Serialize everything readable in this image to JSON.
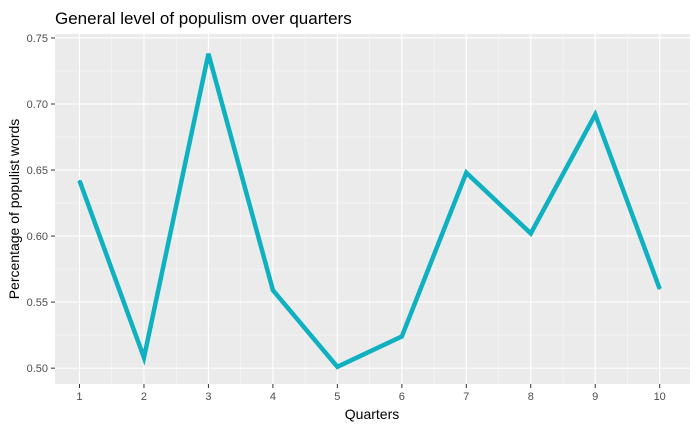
{
  "chart_data": {
    "type": "line",
    "title": "General level of populism over quarters",
    "xlabel": "Quarters",
    "ylabel": "Percentage of populist words",
    "x": [
      1,
      2,
      3,
      4,
      5,
      6,
      7,
      8,
      9,
      10
    ],
    "xticks": [
      "1",
      "2",
      "3",
      "4",
      "5",
      "6",
      "7",
      "8",
      "9",
      "10"
    ],
    "xlim": [
      0.62,
      10.47
    ],
    "yticks": [
      "0.50",
      "0.55",
      "0.60",
      "0.65",
      "0.70",
      "0.75"
    ],
    "ytick_values": [
      0.5,
      0.55,
      0.6,
      0.65,
      0.7,
      0.75
    ],
    "ylim": [
      0.488,
      0.753
    ],
    "grid": true,
    "legend": "none",
    "series": [
      {
        "values": [
          0.642,
          0.508,
          0.738,
          0.559,
          0.501,
          0.524,
          0.648,
          0.602,
          0.692,
          0.56
        ],
        "color": "#0fb1c0"
      }
    ],
    "panel_color": "#ebebeb"
  }
}
